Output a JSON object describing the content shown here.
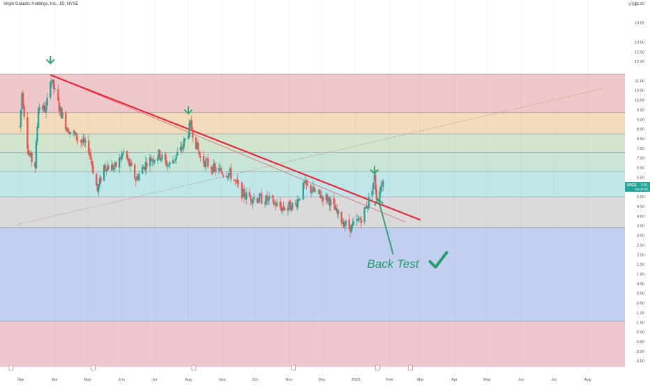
{
  "header": {
    "title": "Virgin Galactic Holdings, Inc., 1D, NYSE"
  },
  "currency": "USD",
  "price_tag": {
    "symbol": "SPCE",
    "price": "5.51",
    "countdown": "04:20:33"
  },
  "annotation": {
    "text": "Back Test"
  },
  "colors": {
    "up": "#26a69a",
    "down": "#ef5350",
    "trendline": "#e8283a",
    "annotation": "#1f9e6b",
    "arrow": "#34a86b"
  },
  "chart_data": {
    "type": "candlestick",
    "title": "Virgin Galactic Holdings, Inc., 1D, NYSE",
    "ylim": [
      -3.8,
      15.0
    ],
    "y_ticks": [
      "15.00",
      "14.00",
      "13.00",
      "12.50",
      "12.00",
      "11.00",
      "10.50",
      "10.00",
      "9.50",
      "9.00",
      "8.50",
      "8.00",
      "7.50",
      "7.00",
      "6.50",
      "6.00",
      "5.50",
      "5.00",
      "4.50",
      "4.00",
      "3.50",
      "3.00",
      "2.50",
      "2.00",
      "1.50",
      "1.00",
      "0.50",
      "0.00",
      "-0.50",
      "-1.00",
      "-1.50",
      "-2.00",
      "-2.50",
      "-3.00",
      "-3.50"
    ],
    "x_ticks": [
      "Mar",
      "Apr",
      "May",
      "Jun",
      "Jul",
      "Aug",
      "Sep",
      "Oct",
      "Nov",
      "Dec",
      "2023",
      "Feb",
      "Mar",
      "Apr",
      "May",
      "Jun",
      "Jul",
      "Aug"
    ],
    "zones": [
      {
        "from": 9.35,
        "to": 11.35,
        "color": "#f0c8cc"
      },
      {
        "from": 8.25,
        "to": 9.35,
        "color": "#f3dcbb"
      },
      {
        "from": 7.3,
        "to": 8.25,
        "color": "#d3e6cd"
      },
      {
        "from": 6.3,
        "to": 7.3,
        "color": "#c8e6d8"
      },
      {
        "from": 5.0,
        "to": 6.3,
        "color": "#bfe6e8"
      },
      {
        "from": 3.4,
        "to": 5.0,
        "color": "#dadada"
      },
      {
        "from": -1.45,
        "to": 3.4,
        "color": "#c3cff0"
      },
      {
        "from": -3.8,
        "to": -1.45,
        "color": "#efc8cf"
      }
    ],
    "trendline": {
      "from": [
        "2022-03-28",
        11.3
      ],
      "to": [
        "2023-03-01",
        3.8
      ]
    },
    "thin_trendline": {
      "from": [
        "2022-03-28",
        11.3
      ],
      "to": [
        "2023-02-15",
        3.7
      ]
    },
    "support_line": {
      "from": [
        "2022-02-25",
        3.55
      ],
      "to": [
        "2023-08-15",
        10.6
      ]
    },
    "down_arrows": [
      {
        "date": "2022-03-28",
        "price": 11.9
      },
      {
        "date": "2022-08-01",
        "price": 9.3
      },
      {
        "date": "2023-01-18",
        "price": 6.2
      }
    ],
    "back_test_point": {
      "date": "2023-01-21",
      "price": 5.0
    },
    "waypoints": [
      [
        "2022-02-28",
        8.6
      ],
      [
        "2022-03-02",
        10.4
      ],
      [
        "2022-03-08",
        7.2
      ],
      [
        "2022-03-14",
        6.6
      ],
      [
        "2022-03-17",
        9.7
      ],
      [
        "2022-03-24",
        9.5
      ],
      [
        "2022-03-28",
        11.2
      ],
      [
        "2022-04-05",
        9.6
      ],
      [
        "2022-04-12",
        8.6
      ],
      [
        "2022-04-22",
        8.0
      ],
      [
        "2022-05-02",
        7.5
      ],
      [
        "2022-05-10",
        5.3
      ],
      [
        "2022-05-16",
        6.6
      ],
      [
        "2022-05-26",
        6.5
      ],
      [
        "2022-06-03",
        7.3
      ],
      [
        "2022-06-14",
        5.9
      ],
      [
        "2022-06-24",
        6.8
      ],
      [
        "2022-07-05",
        7.2
      ],
      [
        "2022-07-14",
        6.6
      ],
      [
        "2022-07-26",
        7.5
      ],
      [
        "2022-08-03",
        8.7
      ],
      [
        "2022-08-12",
        7.0
      ],
      [
        "2022-08-25",
        6.4
      ],
      [
        "2022-09-08",
        6.2
      ],
      [
        "2022-09-20",
        5.1
      ],
      [
        "2022-10-03",
        4.9
      ],
      [
        "2022-10-14",
        4.8
      ],
      [
        "2022-10-26",
        4.4
      ],
      [
        "2022-11-07",
        4.6
      ],
      [
        "2022-11-15",
        5.6
      ],
      [
        "2022-11-28",
        5.1
      ],
      [
        "2022-12-07",
        4.9
      ],
      [
        "2022-12-15",
        4.1
      ],
      [
        "2022-12-22",
        3.6
      ],
      [
        "2022-12-28",
        3.4
      ],
      [
        "2023-01-06",
        3.9
      ],
      [
        "2023-01-13",
        4.8
      ],
      [
        "2023-01-18",
        6.0
      ],
      [
        "2023-01-20",
        5.0
      ],
      [
        "2023-01-23",
        5.5
      ],
      [
        "2023-01-26",
        5.8
      ]
    ]
  }
}
